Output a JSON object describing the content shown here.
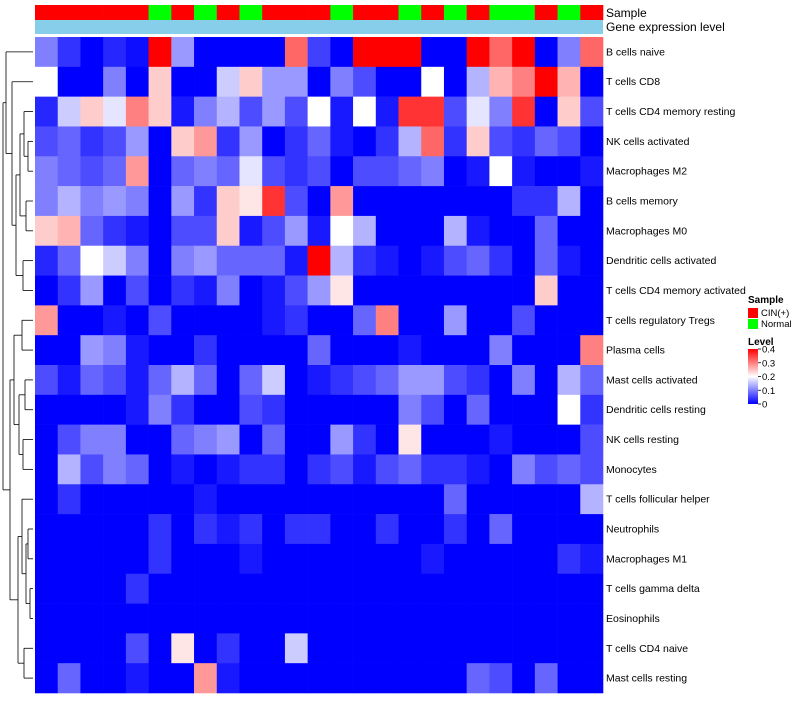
{
  "chart_data": {
    "type": "heatmap",
    "annotation_tracks": {
      "sample_label": "Sample",
      "expression_label": "Gene expression level"
    },
    "columns": 25,
    "sample_groups": [
      "CIN",
      "CIN",
      "CIN",
      "CIN",
      "CIN",
      "N",
      "CIN",
      "N",
      "CIN",
      "N",
      "CIN",
      "CIN",
      "CIN",
      "N",
      "CIN",
      "CIN",
      "N",
      "CIN",
      "N",
      "CIN",
      "N",
      "N",
      "CIN",
      "N",
      "CIN"
    ],
    "rows": [
      "B cells naive",
      "T cells CD8",
      "T cells CD4 memory resting",
      "NK cells activated",
      "Macrophages M2",
      "B cells memory",
      "Macrophages M0",
      "Dendritic cells activated",
      "T cells CD4 memory activated",
      "T cells regulatory  Tregs",
      "Plasma cells",
      "Mast cells activated",
      "Dendritic cells resting",
      "NK cells resting",
      "Monocytes",
      "T cells follicular helper",
      "Neutrophils",
      "Macrophages M1",
      "T cells gamma delta",
      "Eosinophils",
      "T cells CD4 naive",
      "Mast cells resting"
    ],
    "values": [
      [
        0.1,
        0.04,
        0.0,
        0.03,
        0.01,
        0.4,
        0.12,
        0.0,
        0.0,
        0.0,
        0.0,
        0.32,
        0.05,
        0.0,
        0.4,
        0.4,
        0.4,
        0.0,
        0.0,
        0.4,
        0.32,
        0.4,
        0.0,
        0.1,
        0.32
      ],
      [
        0.2,
        0.0,
        0.0,
        0.1,
        0.0,
        0.24,
        0.0,
        0.0,
        0.16,
        0.24,
        0.12,
        0.12,
        0.0,
        0.1,
        0.06,
        0.0,
        0.0,
        0.2,
        0.0,
        0.14,
        0.26,
        0.3,
        0.4,
        0.26,
        0.0
      ],
      [
        0.03,
        0.16,
        0.24,
        0.18,
        0.3,
        0.24,
        0.02,
        0.1,
        0.14,
        0.06,
        0.12,
        0.06,
        0.2,
        0.02,
        0.2,
        0.02,
        0.36,
        0.36,
        0.06,
        0.18,
        0.1,
        0.36,
        0.0,
        0.24,
        0.06
      ],
      [
        0.06,
        0.08,
        0.04,
        0.06,
        0.12,
        0.0,
        0.24,
        0.28,
        0.04,
        0.12,
        0.0,
        0.04,
        0.08,
        0.02,
        0.0,
        0.04,
        0.14,
        0.32,
        0.04,
        0.24,
        0.06,
        0.04,
        0.08,
        0.06,
        0.0
      ],
      [
        0.1,
        0.08,
        0.06,
        0.08,
        0.28,
        0.0,
        0.08,
        0.1,
        0.08,
        0.18,
        0.06,
        0.04,
        0.06,
        0.0,
        0.06,
        0.06,
        0.08,
        0.1,
        0.0,
        0.02,
        0.2,
        0.02,
        0.0,
        0.0,
        0.02
      ],
      [
        0.1,
        0.14,
        0.1,
        0.12,
        0.1,
        0.0,
        0.12,
        0.04,
        0.24,
        0.22,
        0.36,
        0.06,
        0.0,
        0.28,
        0.0,
        0.0,
        0.0,
        0.0,
        0.0,
        0.0,
        0.0,
        0.04,
        0.04,
        0.14,
        0.0
      ],
      [
        0.24,
        0.26,
        0.08,
        0.04,
        0.02,
        0.0,
        0.06,
        0.06,
        0.24,
        0.02,
        0.06,
        0.12,
        0.02,
        0.2,
        0.14,
        0.0,
        0.0,
        0.0,
        0.14,
        0.02,
        0.0,
        0.0,
        0.08,
        0.0,
        0.0
      ],
      [
        0.03,
        0.08,
        0.2,
        0.16,
        0.1,
        0.0,
        0.1,
        0.12,
        0.08,
        0.08,
        0.08,
        0.02,
        0.4,
        0.14,
        0.04,
        0.02,
        0.0,
        0.02,
        0.06,
        0.08,
        0.04,
        0.0,
        0.08,
        0.02,
        0.0
      ],
      [
        0.0,
        0.04,
        0.12,
        0.0,
        0.06,
        0.0,
        0.04,
        0.02,
        0.1,
        0.0,
        0.02,
        0.06,
        0.12,
        0.22,
        0.0,
        0.0,
        0.0,
        0.0,
        0.0,
        0.0,
        0.0,
        0.0,
        0.24,
        0.0,
        0.0
      ],
      [
        0.28,
        0.0,
        0.0,
        0.02,
        0.0,
        0.06,
        0.0,
        0.0,
        0.0,
        0.0,
        0.02,
        0.04,
        0.0,
        0.0,
        0.08,
        0.3,
        0.0,
        0.0,
        0.12,
        0.0,
        0.0,
        0.06,
        0.0,
        0.0,
        0.0
      ],
      [
        0.0,
        0.0,
        0.12,
        0.1,
        0.02,
        0.0,
        0.0,
        0.04,
        0.0,
        0.0,
        0.0,
        0.0,
        0.08,
        0.0,
        0.0,
        0.0,
        0.02,
        0.0,
        0.0,
        0.0,
        0.1,
        0.0,
        0.0,
        0.0,
        0.3
      ],
      [
        0.06,
        0.02,
        0.08,
        0.06,
        0.02,
        0.08,
        0.14,
        0.08,
        0.0,
        0.08,
        0.16,
        0.0,
        0.02,
        0.04,
        0.06,
        0.08,
        0.12,
        0.12,
        0.06,
        0.04,
        0.0,
        0.1,
        0.0,
        0.14,
        0.08
      ],
      [
        0.0,
        0.0,
        0.0,
        0.0,
        0.02,
        0.1,
        0.04,
        0.0,
        0.0,
        0.06,
        0.04,
        0.0,
        0.0,
        0.0,
        0.0,
        0.0,
        0.1,
        0.06,
        0.0,
        0.08,
        0.0,
        0.0,
        0.0,
        0.2,
        0.04
      ],
      [
        0.0,
        0.06,
        0.1,
        0.1,
        0.0,
        0.0,
        0.08,
        0.1,
        0.12,
        0.0,
        0.08,
        0.0,
        0.0,
        0.12,
        0.04,
        0.0,
        0.22,
        0.0,
        0.0,
        0.0,
        0.02,
        0.0,
        0.0,
        0.0,
        0.06
      ],
      [
        0.0,
        0.14,
        0.06,
        0.1,
        0.08,
        0.0,
        0.02,
        0.0,
        0.02,
        0.04,
        0.04,
        0.0,
        0.04,
        0.06,
        0.02,
        0.06,
        0.08,
        0.04,
        0.04,
        0.02,
        0.0,
        0.1,
        0.06,
        0.08,
        0.06
      ],
      [
        0.0,
        0.04,
        0.0,
        0.0,
        0.0,
        0.0,
        0.0,
        0.02,
        0.0,
        0.0,
        0.0,
        0.0,
        0.0,
        0.0,
        0.0,
        0.0,
        0.0,
        0.0,
        0.08,
        0.0,
        0.0,
        0.0,
        0.0,
        0.0,
        0.14
      ],
      [
        0.0,
        0.0,
        0.0,
        0.0,
        0.0,
        0.04,
        0.0,
        0.04,
        0.02,
        0.04,
        0.0,
        0.04,
        0.04,
        0.0,
        0.0,
        0.04,
        0.0,
        0.0,
        0.04,
        0.0,
        0.08,
        0.0,
        0.0,
        0.0,
        0.0
      ],
      [
        0.0,
        0.0,
        0.0,
        0.0,
        0.0,
        0.04,
        0.0,
        0.0,
        0.0,
        0.02,
        0.0,
        0.0,
        0.0,
        0.0,
        0.0,
        0.0,
        0.0,
        0.02,
        0.0,
        0.0,
        0.0,
        0.0,
        0.0,
        0.04,
        0.02
      ],
      [
        0.0,
        0.0,
        0.0,
        0.0,
        0.04,
        0.0,
        0.0,
        0.0,
        0.0,
        0.0,
        0.0,
        0.0,
        0.0,
        0.0,
        0.0,
        0.0,
        0.0,
        0.0,
        0.0,
        0.0,
        0.0,
        0.0,
        0.0,
        0.0,
        0.0
      ],
      [
        0.0,
        0.0,
        0.0,
        0.0,
        0.0,
        0.0,
        0.0,
        0.0,
        0.0,
        0.0,
        0.0,
        0.0,
        0.0,
        0.0,
        0.0,
        0.0,
        0.0,
        0.0,
        0.0,
        0.0,
        0.0,
        0.0,
        0.0,
        0.0,
        0.0
      ],
      [
        0.0,
        0.0,
        0.0,
        0.0,
        0.06,
        0.0,
        0.22,
        0.0,
        0.04,
        0.0,
        0.0,
        0.16,
        0.0,
        0.0,
        0.0,
        0.0,
        0.0,
        0.0,
        0.0,
        0.0,
        0.0,
        0.0,
        0.0,
        0.0,
        0.0
      ],
      [
        0.0,
        0.08,
        0.0,
        0.0,
        0.02,
        0.0,
        0.0,
        0.28,
        0.02,
        0.0,
        0.0,
        0.0,
        0.0,
        0.0,
        0.0,
        0.0,
        0.0,
        0.0,
        0.0,
        0.08,
        0.06,
        0.0,
        0.08,
        0.0,
        0.0
      ]
    ],
    "legend": {
      "sample_title": "Sample",
      "sample_entries": [
        {
          "label": "CIN(+)",
          "color": "#FF0000"
        },
        {
          "label": "Normal",
          "color": "#00FF00"
        }
      ],
      "level_title": "Level",
      "level_ticks": [
        "0.4",
        "0.3",
        "0.2",
        "0.1",
        "0"
      ],
      "level_tick_values": [
        0.4,
        0.3,
        0.2,
        0.1,
        0
      ],
      "range": [
        0,
        0.4
      ]
    },
    "colors": {
      "low": "#0000FF",
      "mid": "#FFFFFF",
      "high": "#FF0000",
      "cin": "#FF0000",
      "normal": "#00FF00",
      "expression_bar": "#87CEEB"
    },
    "row_dendrogram": "shown on left",
    "column_dendrogram": "none"
  }
}
